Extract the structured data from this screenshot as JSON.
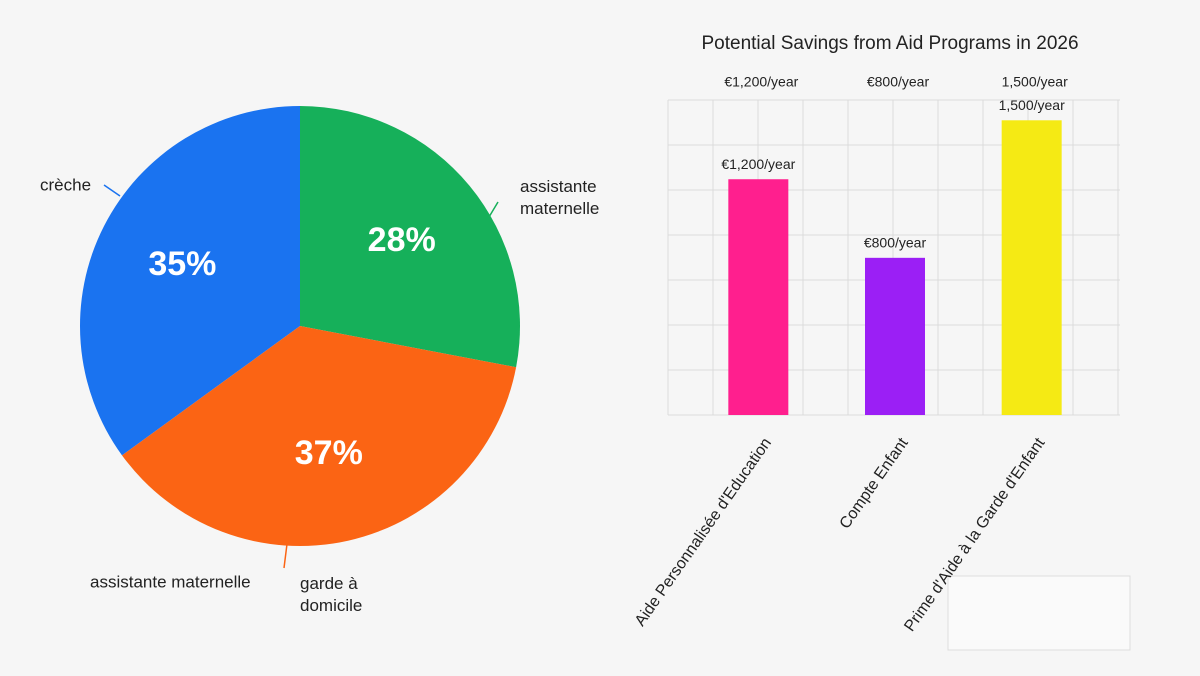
{
  "chart_data": [
    {
      "type": "pie",
      "categories": [
        "crèche",
        "assistante maternelle",
        "garde à domicile"
      ],
      "values": [
        35,
        28,
        37
      ],
      "value_labels": [
        "35%",
        "28%",
        "37%"
      ],
      "colors": [
        "#1a73f0",
        "#16b05a",
        "#fb6414"
      ],
      "annotations": [
        "assistante maternelle"
      ]
    },
    {
      "type": "bar",
      "title": "Potential Savings from Aid Programs in 2026",
      "categories": [
        "Aide Personnalisée d'Education",
        "Compte Enfant",
        "Prime d'Aide à la Garde d'Enfant"
      ],
      "values": [
        1200,
        800,
        1500
      ],
      "value_labels": [
        "€1,200/year",
        "€800/year",
        "1,500/year"
      ],
      "annotations": [
        "€1,200/year",
        "€800/year",
        "1,500/year"
      ],
      "colors": [
        "#ff1f8e",
        "#9b1ff5",
        "#f5ea14"
      ],
      "ylim": [
        0,
        1700
      ],
      "grid": true
    }
  ]
}
